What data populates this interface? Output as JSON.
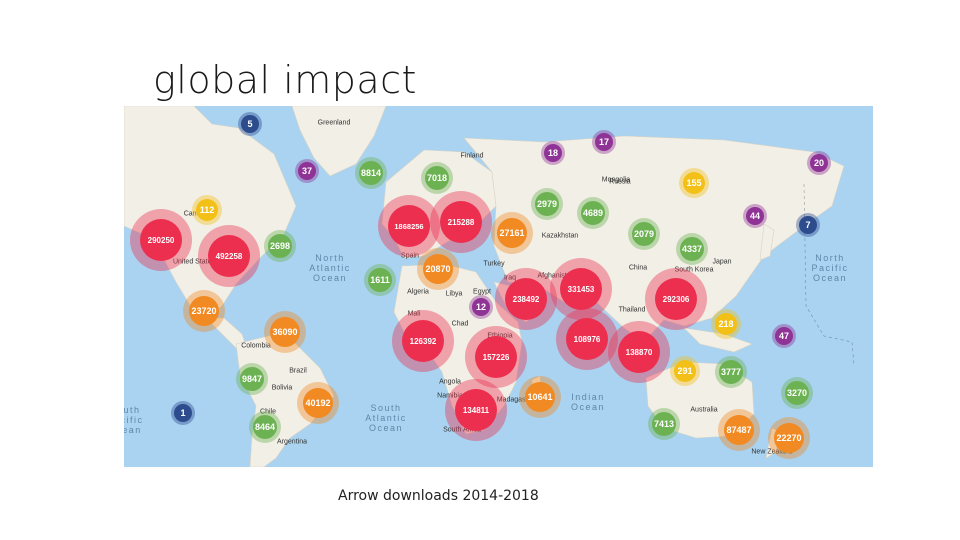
{
  "title": "global impact",
  "caption": "Arrow downloads 2014-2018",
  "colors": {
    "ocean": "#a9d3f0",
    "land": "#f2efe6",
    "red": "#ec2f4f",
    "orange": "#f18a23",
    "yellow": "#f3c018",
    "green": "#6cb253",
    "purple": "#8f3396",
    "navy": "#2d4c8e"
  },
  "ocean_labels": [
    {
      "name": "North Atlantic Ocean",
      "text": "North\nAtlantic\nOcean"
    },
    {
      "name": "North Pacific Ocean",
      "text": "North\nPacific\nOcean"
    },
    {
      "name": "South Atlantic Ocean",
      "text": "South\nAtlantic\nOcean"
    },
    {
      "name": "Indian Ocean",
      "text": "Indian\nOcean"
    },
    {
      "name": "South Pacific Ocean (partial)",
      "text": "uth\ncific\nean"
    }
  ],
  "place_labels": [
    "Greenland",
    "Finland",
    "Russia",
    "Canada",
    "United States",
    "Colombia",
    "Brazil",
    "Bolivia",
    "Chile",
    "Argentina",
    "Spain",
    "Algeria",
    "Libya",
    "Egypt",
    "Mali",
    "Chad",
    "Ethiopia",
    "Turkey",
    "Iraq",
    "Afghanistan",
    "Kazakhstan",
    "China",
    "South Korea",
    "Japan",
    "Thailand",
    "Angola",
    "Namibia",
    "South Africa",
    "Madagascar",
    "Australia",
    "New Zealand",
    "Mongolia"
  ],
  "clusters": [
    {
      "id": "south-america-small",
      "value": 1,
      "color": "navy",
      "size": "xs"
    },
    {
      "id": "arctic-canada",
      "value": 5,
      "color": "navy",
      "size": "xs"
    },
    {
      "id": "pacific-islands",
      "value": 7,
      "color": "navy",
      "size": "xs"
    },
    {
      "id": "mediterranean-small",
      "value": 12,
      "color": "purple",
      "size": "xs"
    },
    {
      "id": "russia-north-west",
      "value": 18,
      "color": "purple",
      "size": "xs"
    },
    {
      "id": "russia-north-central",
      "value": 17,
      "color": "purple",
      "size": "xs"
    },
    {
      "id": "russia-far-east",
      "value": 20,
      "color": "purple",
      "size": "xs"
    },
    {
      "id": "alaska",
      "value": 37,
      "color": "purple",
      "size": "xs"
    },
    {
      "id": "russia-pacific",
      "value": 44,
      "color": "purple",
      "size": "xs"
    },
    {
      "id": "oceania-north",
      "value": 47,
      "color": "purple",
      "size": "xs"
    },
    {
      "id": "canada-north",
      "value": 112,
      "color": "yellow",
      "size": "sm"
    },
    {
      "id": "siberia",
      "value": 155,
      "color": "yellow",
      "size": "sm"
    },
    {
      "id": "southeast-asia-islands",
      "value": 218,
      "color": "yellow",
      "size": "sm"
    },
    {
      "id": "indonesia",
      "value": 291,
      "color": "yellow",
      "size": "sm"
    },
    {
      "id": "iceland",
      "value": 8814,
      "color": "green",
      "size": "md"
    },
    {
      "id": "scandinavia",
      "value": 7018,
      "color": "green",
      "size": "md"
    },
    {
      "id": "russia-west",
      "value": 2979,
      "color": "green",
      "size": "md"
    },
    {
      "id": "russia-central",
      "value": 4689,
      "color": "green",
      "size": "md"
    },
    {
      "id": "canada-east",
      "value": 2698,
      "color": "green",
      "size": "md"
    },
    {
      "id": "mongolia",
      "value": 2079,
      "color": "green",
      "size": "md"
    },
    {
      "id": "japan",
      "value": 4337,
      "color": "green",
      "size": "md"
    },
    {
      "id": "atlantic-islands",
      "value": 1611,
      "color": "green",
      "size": "md"
    },
    {
      "id": "colombia",
      "value": 9847,
      "color": "green",
      "size": "md"
    },
    {
      "id": "chile",
      "value": 8464,
      "color": "green",
      "size": "md"
    },
    {
      "id": "australia-north",
      "value": 3777,
      "color": "green",
      "size": "md"
    },
    {
      "id": "pacific-east",
      "value": 3270,
      "color": "green",
      "size": "md"
    },
    {
      "id": "australia-west",
      "value": 7413,
      "color": "green",
      "size": "md"
    },
    {
      "id": "kazakhstan",
      "value": 27161,
      "color": "orange",
      "size": "lg"
    },
    {
      "id": "north-africa",
      "value": 20870,
      "color": "orange",
      "size": "lg"
    },
    {
      "id": "mexico",
      "value": 23720,
      "color": "orange",
      "size": "lg"
    },
    {
      "id": "venezuela",
      "value": 36090,
      "color": "orange",
      "size": "lg"
    },
    {
      "id": "brazil",
      "value": 40192,
      "color": "orange",
      "size": "lg"
    },
    {
      "id": "madagascar",
      "value": 10641,
      "color": "orange",
      "size": "lg"
    },
    {
      "id": "australia-south",
      "value": 87487,
      "color": "orange",
      "size": "lg"
    },
    {
      "id": "new-zealand",
      "value": 22270,
      "color": "orange",
      "size": "lg"
    },
    {
      "id": "europe-west",
      "value": 1868256,
      "color": "red",
      "size": "xl"
    },
    {
      "id": "europe-east",
      "value": 215288,
      "color": "red",
      "size": "xl"
    },
    {
      "id": "usa-west",
      "value": 290250,
      "color": "red",
      "size": "xl"
    },
    {
      "id": "usa-east",
      "value": 492258,
      "color": "red",
      "size": "xl"
    },
    {
      "id": "middle-east",
      "value": 238492,
      "color": "red",
      "size": "xl"
    },
    {
      "id": "india",
      "value": 331453,
      "color": "red",
      "size": "xl"
    },
    {
      "id": "east-asia",
      "value": 292306,
      "color": "red",
      "size": "xl"
    },
    {
      "id": "west-africa",
      "value": 126392,
      "color": "red",
      "size": "xl"
    },
    {
      "id": "east-africa",
      "value": 157226,
      "color": "red",
      "size": "xl"
    },
    {
      "id": "south-asia",
      "value": 108976,
      "color": "red",
      "size": "xl"
    },
    {
      "id": "southeast-asia",
      "value": 138870,
      "color": "red",
      "size": "xl"
    },
    {
      "id": "southern-africa",
      "value": 134811,
      "color": "red",
      "size": "xl"
    }
  ]
}
